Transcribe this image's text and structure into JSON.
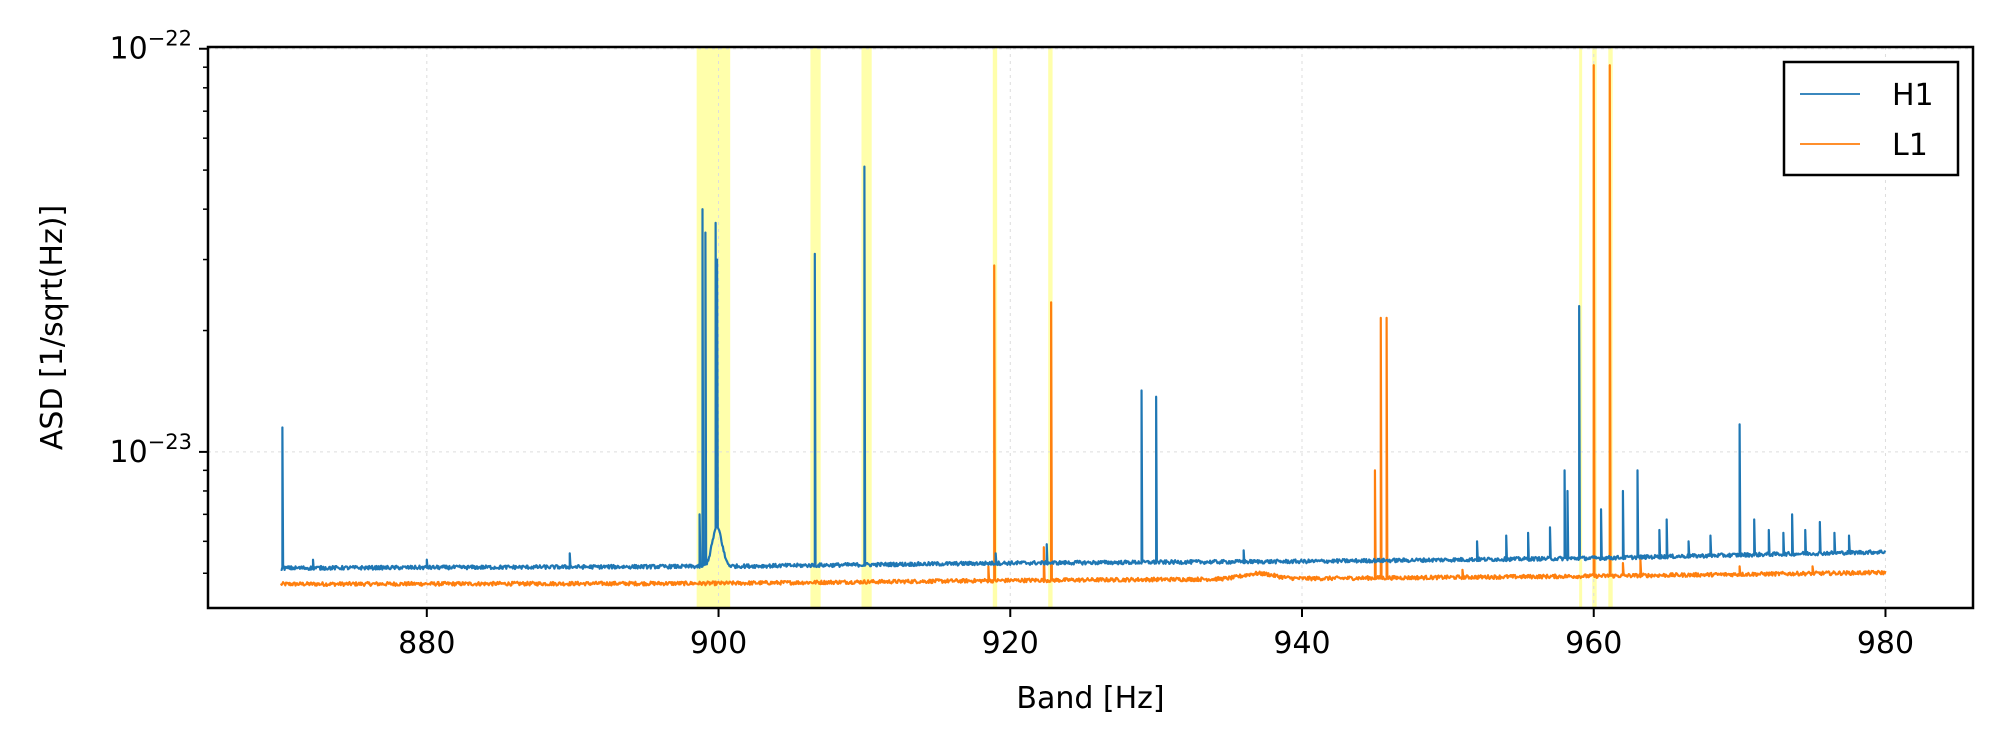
{
  "chart_data": {
    "type": "line",
    "xlabel": "Band [Hz]",
    "ylabel": "ASD [1/sqrt(Hz)]",
    "xlim": [
      865,
      986
    ],
    "ylim": [
      4.1e-24,
      1.01e-22
    ],
    "yscale": "log",
    "grid": true,
    "legend_position": "top-right",
    "x_ticks": [
      880,
      900,
      920,
      940,
      960,
      980
    ],
    "y_ticks": [
      {
        "value": 1e-23,
        "mantissa": "10",
        "exponent": "−23"
      },
      {
        "value": 1e-22,
        "mantissa": "10",
        "exponent": "−22"
      }
    ],
    "highlight_bands": [
      [
        898.5,
        900.8
      ],
      [
        906.3,
        907.0
      ],
      [
        909.8,
        910.5
      ],
      [
        918.8,
        919.1
      ],
      [
        922.6,
        922.9
      ],
      [
        959.0,
        959.2
      ],
      [
        959.9,
        960.2
      ],
      [
        961.0,
        961.3
      ]
    ],
    "highlight_color": "#ffff66",
    "series": [
      {
        "name": "H1",
        "color": "#1f77b4",
        "baseline": [
          [
            870,
            5.15e-24
          ],
          [
            900,
            5.2e-24
          ],
          [
            920,
            5.3e-24
          ],
          [
            940,
            5.35e-24
          ],
          [
            960,
            5.45e-24
          ],
          [
            980,
            5.65e-24
          ]
        ],
        "bumps": [
          [
            899.9,
            1.3e-24,
            0.45
          ]
        ],
        "spikes": [
          [
            870.1,
            1.15e-23
          ],
          [
            872.2,
            5.4e-24
          ],
          [
            880.0,
            5.4e-24
          ],
          [
            889.8,
            5.6e-24
          ],
          [
            898.7,
            7e-24
          ],
          [
            898.9,
            4e-23
          ],
          [
            899.1,
            3.5e-23
          ],
          [
            899.8,
            3.7e-23
          ],
          [
            899.9,
            3e-23
          ],
          [
            906.6,
            3.1e-23
          ],
          [
            910.0,
            5.1e-23
          ],
          [
            919.0,
            5.6e-24
          ],
          [
            922.5,
            5.9e-24
          ],
          [
            929.0,
            1.42e-23
          ],
          [
            930.0,
            1.37e-23
          ],
          [
            936.0,
            5.7e-24
          ],
          [
            952.0,
            6e-24
          ],
          [
            954.0,
            6.2e-24
          ],
          [
            955.5,
            6.3e-24
          ],
          [
            957.0,
            6.5e-24
          ],
          [
            958.0,
            9e-24
          ],
          [
            958.2,
            8e-24
          ],
          [
            959.0,
            2.3e-23
          ],
          [
            960.5,
            7.2e-24
          ],
          [
            962.0,
            8e-24
          ],
          [
            963.0,
            9e-24
          ],
          [
            964.5,
            6.4e-24
          ],
          [
            965.0,
            6.8e-24
          ],
          [
            966.5,
            6e-24
          ],
          [
            968.0,
            6.2e-24
          ],
          [
            970.0,
            1.17e-23
          ],
          [
            971.0,
            6.8e-24
          ],
          [
            972.0,
            6.4e-24
          ],
          [
            973.0,
            6.3e-24
          ],
          [
            973.6,
            7e-24
          ],
          [
            974.5,
            6.4e-24
          ],
          [
            975.5,
            6.7e-24
          ],
          [
            976.5,
            6.3e-24
          ],
          [
            977.5,
            6.2e-24
          ]
        ]
      },
      {
        "name": "L1",
        "color": "#ff7f0e",
        "baseline": [
          [
            870,
            4.7e-24
          ],
          [
            900,
            4.72e-24
          ],
          [
            920,
            4.8e-24
          ],
          [
            940,
            4.85e-24
          ],
          [
            960,
            4.92e-24
          ],
          [
            980,
            5.02e-24
          ]
        ],
        "bumps": [
          [
            937.0,
            1.5e-25,
            1.5
          ]
        ],
        "spikes": [
          [
            918.5,
            5.2e-24
          ],
          [
            918.9,
            2.9e-23
          ],
          [
            922.3,
            5.8e-24
          ],
          [
            922.8,
            2.35e-23
          ],
          [
            945.0,
            9e-24
          ],
          [
            945.4,
            2.15e-23
          ],
          [
            945.8,
            2.15e-23
          ],
          [
            951.0,
            5.1e-24
          ],
          [
            960.0,
            9.1e-23
          ],
          [
            961.1,
            9.1e-23
          ],
          [
            962.0,
            5.3e-24
          ],
          [
            963.2,
            5.4e-24
          ],
          [
            970.0,
            5.2e-24
          ],
          [
            975.0,
            5.2e-24
          ]
        ]
      }
    ]
  }
}
